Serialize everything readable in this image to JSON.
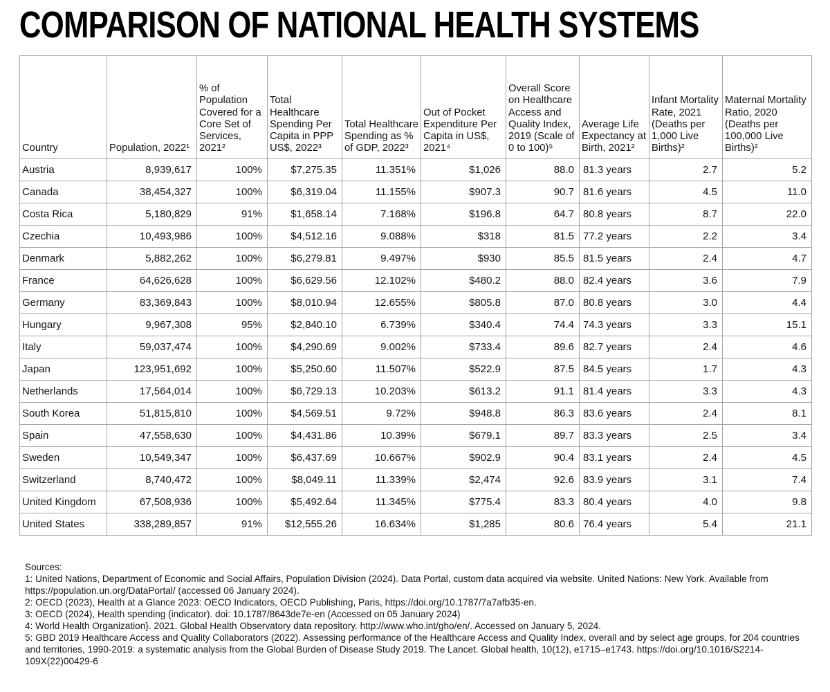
{
  "title": "COMPARISON OF NATIONAL HEALTH SYSTEMS",
  "table": {
    "columns": [
      "Country",
      "Population, 2022¹",
      "% of Population Covered for a Core Set of Services, 2021²",
      "Total Healthcare Spending Per Capita in PPP US$, 2022³",
      "Total Healthcare Spending as % of GDP, 2022³",
      "Out of Pocket Expenditure Per Capita in US$, 2021⁴",
      "Overall Score on Healthcare Access and Quality Index, 2019 (Scale of 0 to 100)⁵",
      "Average Life Expectancy at Birth, 2021²",
      "Infant Mortality Rate, 2021 (Deaths per 1,000 Live Births)²",
      "Maternal Mortality Ratio, 2020 (Deaths per 100,000 Live Births)²"
    ],
    "rows": [
      [
        "Austria",
        "8,939,617",
        "100%",
        "$7,275.35",
        "11.351%",
        "$1,026",
        "88.0",
        "81.3 years",
        "2.7",
        "5.2"
      ],
      [
        "Canada",
        "38,454,327",
        "100%",
        "$6,319.04",
        "11.155%",
        "$907.3",
        "90.7",
        "81.6 years",
        "4.5",
        "11.0"
      ],
      [
        "Costa Rica",
        "5,180,829",
        "91%",
        "$1,658.14",
        "7.168%",
        "$196.8",
        "64.7",
        "80.8 years",
        "8.7",
        "22.0"
      ],
      [
        "Czechia",
        "10,493,986",
        "100%",
        "$4,512.16",
        "9.088%",
        "$318",
        "81.5",
        "77.2 years",
        "2.2",
        "3.4"
      ],
      [
        "Denmark",
        "5,882,262",
        "100%",
        "$6,279.81",
        "9.497%",
        "$930",
        "85.5",
        "81.5 years",
        "2.4",
        "4.7"
      ],
      [
        "France",
        "64,626,628",
        "100%",
        "$6,629.56",
        "12.102%",
        "$480.2",
        "88.0",
        "82.4 years",
        "3.6",
        "7.9"
      ],
      [
        "Germany",
        "83,369,843",
        "100%",
        "$8,010.94",
        "12.655%",
        "$805.8",
        "87.0",
        "80.8 years",
        "3.0",
        "4.4"
      ],
      [
        "Hungary",
        "9,967,308",
        "95%",
        "$2,840.10",
        "6.739%",
        "$340.4",
        "74.4",
        "74.3 years",
        "3.3",
        "15.1"
      ],
      [
        "Italy",
        "59,037,474",
        "100%",
        "$4,290.69",
        "9.002%",
        "$733.4",
        "89.6",
        "82.7 years",
        "2.4",
        "4.6"
      ],
      [
        "Japan",
        "123,951,692",
        "100%",
        "$5,250.60",
        "11.507%",
        "$522.9",
        "87.5",
        "84.5 years",
        "1.7",
        "4.3"
      ],
      [
        "Netherlands",
        "17,564,014",
        "100%",
        "$6,729.13",
        "10.203%",
        "$613.2",
        "91.1",
        "81.4 years",
        "3.3",
        "4.3"
      ],
      [
        "South Korea",
        "51,815,810",
        "100%",
        "$4,569.51",
        "9.72%",
        "$948.8",
        "86.3",
        "83.6 years",
        "2.4",
        "8.1"
      ],
      [
        "Spain",
        "47,558,630",
        "100%",
        "$4,431.86",
        "10.39%",
        "$679.1",
        "89.7",
        "83.3 years",
        "2.5",
        "3.4"
      ],
      [
        "Sweden",
        "10,549,347",
        "100%",
        "$6,437.69",
        "10.667%",
        "$902.9",
        "90.4",
        "83.1 years",
        "2.4",
        "4.5"
      ],
      [
        "Switzerland",
        "8,740,472",
        "100%",
        "$8,049.11",
        "11.339%",
        "$2,474",
        "92.6",
        "83.9 years",
        "3.1",
        "7.4"
      ],
      [
        "United Kingdom",
        "67,508,936",
        "100%",
        "$5,492.64",
        "11.345%",
        "$775.4",
        "83.3",
        "80.4 years",
        "4.0",
        "9.8"
      ],
      [
        "United States",
        "338,289,857",
        "91%",
        "$12,555.26",
        "16.634%",
        "$1,285",
        "80.6",
        "76.4 years",
        "5.4",
        "21.1"
      ]
    ]
  },
  "sources": {
    "heading": "Sources:",
    "items": [
      "1: United Nations, Department of Economic and Social Affairs, Population Division (2024). Data Portal, custom data acquired via website. United Nations: New York. Available from https://population.un.org/DataPortal/ (accessed 06 January 2024).",
      "2: OECD (2023), Health at a Glance 2023: OECD Indicators, OECD Publishing, Paris, https://doi.org/10.1787/7a7afb35-en.",
      "3: OECD (2024), Health spending (indicator). doi: 10.1787/8643de7e-en (Accessed on 05 January 2024)",
      "4: World Health Organization}. 2021. Global Health Observatory data repository. http://www.who.int/gho/en/. Accessed on January 5, 2024.",
      "5: GBD 2019 Healthcare Access and Quality Collaborators (2022). Assessing performance of the Healthcare Access and Quality Index, overall and by select age groups, for 204 countries and territories, 1990-2019: a systematic analysis from the Global Burden of Disease Study 2019. The Lancet. Global health, 10(12), e1715–e1743. https://doi.org/10.1016/S2214-109X(22)00429-6"
    ]
  }
}
